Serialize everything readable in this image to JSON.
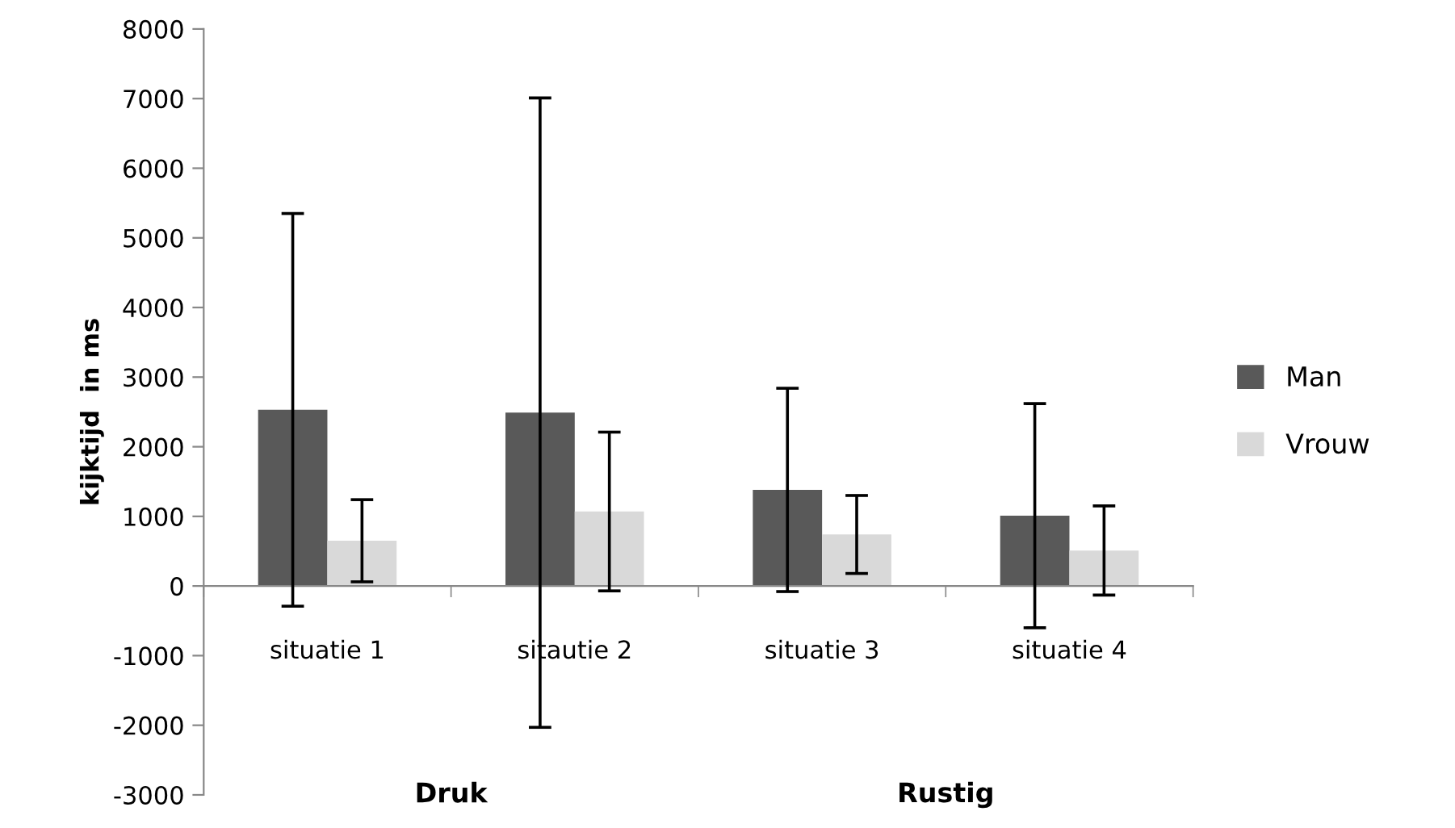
{
  "chart_data": {
    "type": "bar",
    "ylabel": "kijktijd  in ms",
    "categories": [
      "situatie 1",
      "sitautie 2",
      "situatie 3",
      "situatie 4"
    ],
    "series": [
      {
        "name": "Man",
        "color": "#595959",
        "values": [
          2530,
          2490,
          1380,
          1010
        ],
        "errors": [
          2820,
          4520,
          1460,
          1610
        ]
      },
      {
        "name": "Vrouw",
        "color": "#d9d9d9",
        "values": [
          650,
          1070,
          740,
          510
        ],
        "errors": [
          590,
          1140,
          560,
          640
        ]
      }
    ],
    "ylim": [
      -3000,
      8000
    ],
    "yticks": [
      -3000,
      -2000,
      -1000,
      0,
      1000,
      2000,
      3000,
      4000,
      5000,
      6000,
      7000,
      8000
    ],
    "annotations": [
      "Druk",
      "Rustig"
    ],
    "grid": false,
    "legend": "right"
  }
}
